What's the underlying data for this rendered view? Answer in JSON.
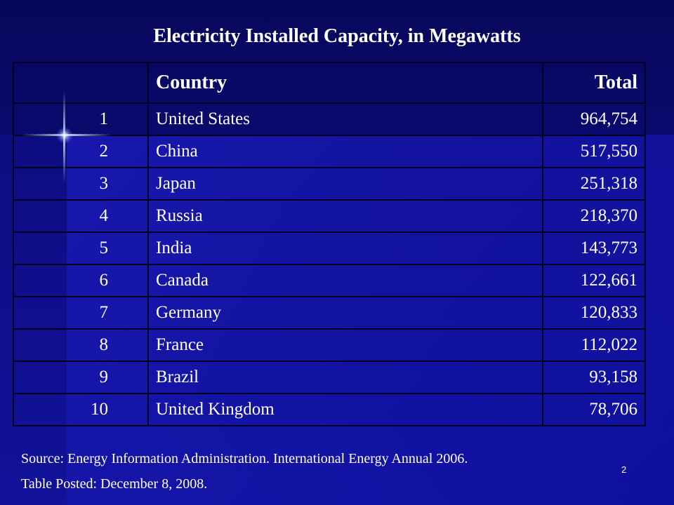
{
  "slide": {
    "title": "Electricity Installed Capacity, in Megawatts",
    "page_number": "2"
  },
  "table": {
    "headers": {
      "rank": "",
      "country": "Country",
      "total": "Total"
    },
    "rows": [
      {
        "rank": "1",
        "country": "United States",
        "total": "964,754"
      },
      {
        "rank": "2",
        "country": "China",
        "total": "517,550"
      },
      {
        "rank": "3",
        "country": "Japan",
        "total": "251,318"
      },
      {
        "rank": "4",
        "country": "Russia",
        "total": "218,370"
      },
      {
        "rank": "5",
        "country": "India",
        "total": "143,773"
      },
      {
        "rank": "6",
        "country": "Canada",
        "total": "122,661"
      },
      {
        "rank": "7",
        "country": "Germany",
        "total": "120,833"
      },
      {
        "rank": "8",
        "country": "France",
        "total": "112,022"
      },
      {
        "rank": "9",
        "country": "Brazil",
        "total": "93,158"
      },
      {
        "rank": "10",
        "country": "United Kingdom",
        "total": "78,706"
      }
    ]
  },
  "footer": {
    "source": "Source: Energy Information Administration. International Energy Annual 2006.",
    "posted": "Table Posted: December 8, 2008."
  },
  "colors": {
    "background": "#0a0a6e",
    "text": "#ffffff",
    "grid": "#000022"
  }
}
